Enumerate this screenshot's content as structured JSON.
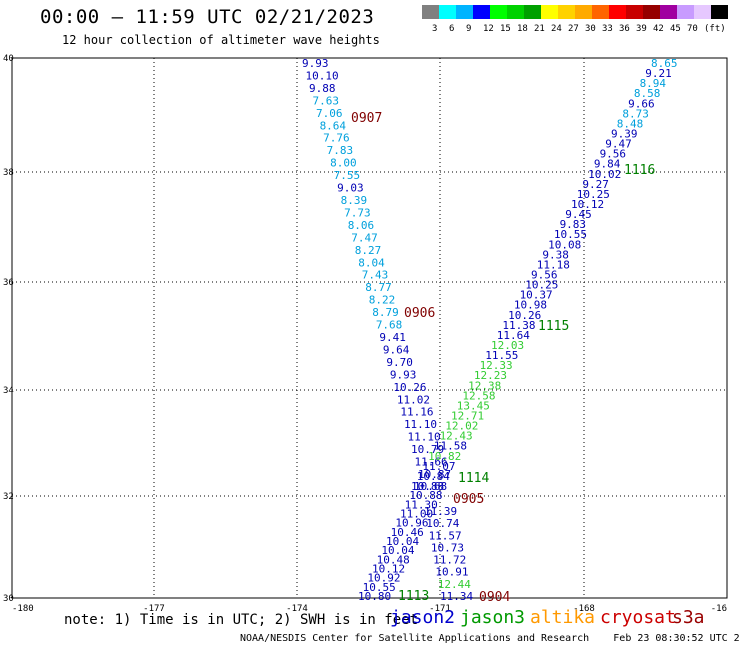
{
  "header": {
    "title": "00:00 – 11:59 UTC 02/21/2023",
    "subtitle": "12 hour collection of altimeter wave heights"
  },
  "legend": {
    "colors": [
      "#808080",
      "#00ffff",
      "#00b4ff",
      "#0000ff",
      "#00ff00",
      "#00d200",
      "#00a000",
      "#ffff00",
      "#ffd200",
      "#ffaa00",
      "#ff6400",
      "#ff0000",
      "#c80000",
      "#960000",
      "#a000a0",
      "#c89bff",
      "#e6c8ff",
      "#000000"
    ],
    "labels": [
      "3",
      "6",
      "9",
      "12",
      "15",
      "18",
      "21",
      "24",
      "27",
      "30",
      "33",
      "36",
      "39",
      "42",
      "45",
      "70",
      "(ft)"
    ]
  },
  "axes": {
    "x_labels": [
      "-180",
      "-177",
      "-174",
      "-171",
      "-168",
      "-16"
    ],
    "y_labels": [
      "40",
      "38",
      "36",
      "34",
      "32",
      "30"
    ]
  },
  "tracks": {
    "left": {
      "top": [
        "9.93",
        "10.10",
        "9.88",
        "7.63",
        "7.06",
        "8.64",
        "7.76",
        "7.83",
        "8.00",
        "7.55",
        "9.03",
        "8.39",
        "7.73",
        "8.06",
        "7.47",
        "8.27",
        "8.04",
        "7.43",
        "8.77",
        "8.22",
        "8.79",
        "7.68",
        "9.41",
        "9.64",
        "9.70",
        "9.93",
        "10.26",
        "11.02",
        "11.16",
        "11.10",
        "11.10",
        "10.79",
        "11.66",
        "10.87"
      ],
      "top_colors": [
        "b",
        "b",
        "b",
        "c",
        "c",
        "c",
        "c",
        "c",
        "c",
        "c",
        "b",
        "c",
        "c",
        "c",
        "c",
        "c",
        "c",
        "c",
        "c",
        "c",
        "c",
        "c",
        "b",
        "b",
        "b",
        "b",
        "b",
        "b",
        "b",
        "b",
        "b",
        "b",
        "b",
        "b"
      ],
      "bottom": [
        "10.68",
        "10.88",
        "11.30",
        "11.00",
        "10.96",
        "10.46",
        "10.04",
        "10.04",
        "10.48",
        "10.12",
        "10.92",
        "10.55",
        "10.80"
      ]
    },
    "right": {
      "top": [
        "8.65",
        "9.21",
        "8.94",
        "8.58",
        "9.66",
        "8.73",
        "8.48",
        "9.39",
        "9.47",
        "9.56",
        "9.84",
        "10.02",
        "9.27",
        "10.25",
        "10.12",
        "9.45",
        "9.83",
        "10.55",
        "10.08",
        "9.38",
        "11.18",
        "9.56",
        "10.25",
        "10.37",
        "10.98",
        "10.26",
        "11.38",
        "11.64",
        "12.03",
        "11.55",
        "12.33",
        "12.23",
        "12.38",
        "12.58",
        "13.45",
        "12.71",
        "12.02",
        "12.43",
        "11.58",
        "10.82",
        "11.07",
        "10.84",
        "10.88"
      ],
      "top_colors": [
        "c",
        "b",
        "c",
        "c",
        "b",
        "c",
        "c",
        "b",
        "b",
        "b",
        "b",
        "b",
        "b",
        "b",
        "b",
        "b",
        "b",
        "b",
        "b",
        "b",
        "b",
        "b",
        "b",
        "b",
        "b",
        "b",
        "b",
        "b",
        "g",
        "b",
        "g",
        "g",
        "g",
        "g",
        "g",
        "g",
        "g",
        "g",
        "b",
        "g",
        "b",
        "b",
        "b"
      ],
      "bottom": [
        "11.39",
        "10.74",
        "11.57",
        "10.73",
        "11.72",
        "10.91",
        "12.44",
        "11.34"
      ],
      "bottom_colors": [
        "b",
        "b",
        "b",
        "b",
        "b",
        "b",
        "g",
        "b"
      ]
    },
    "pass_labels": [
      {
        "text": "0907",
        "color": "#800000"
      },
      {
        "text": "0906",
        "color": "#800000"
      },
      {
        "text": "0905",
        "color": "#800000"
      },
      {
        "text": "0904",
        "color": "#800000"
      },
      {
        "text": "1116",
        "color": "#008000"
      },
      {
        "text": "1115",
        "color": "#008000"
      },
      {
        "text": "1114",
        "color": "#008000"
      },
      {
        "text": "1113",
        "color": "#008000"
      }
    ]
  },
  "footer": {
    "note": "note: 1) Time is in UTC; 2) SWH is in feet",
    "satellites": [
      {
        "name": "jason2",
        "color": "#0000cc"
      },
      {
        "name": "jason3",
        "color": "#009900"
      },
      {
        "name": "altika",
        "color": "#ff9900"
      },
      {
        "name": "cryosat",
        "color": "#cc0000"
      },
      {
        "name": "s3a",
        "color": "#990000"
      }
    ],
    "credit": "NOAA/NESDIS Center for Satellite Applications and Research    Feb 23 08:30:52 UTC 2023"
  }
}
